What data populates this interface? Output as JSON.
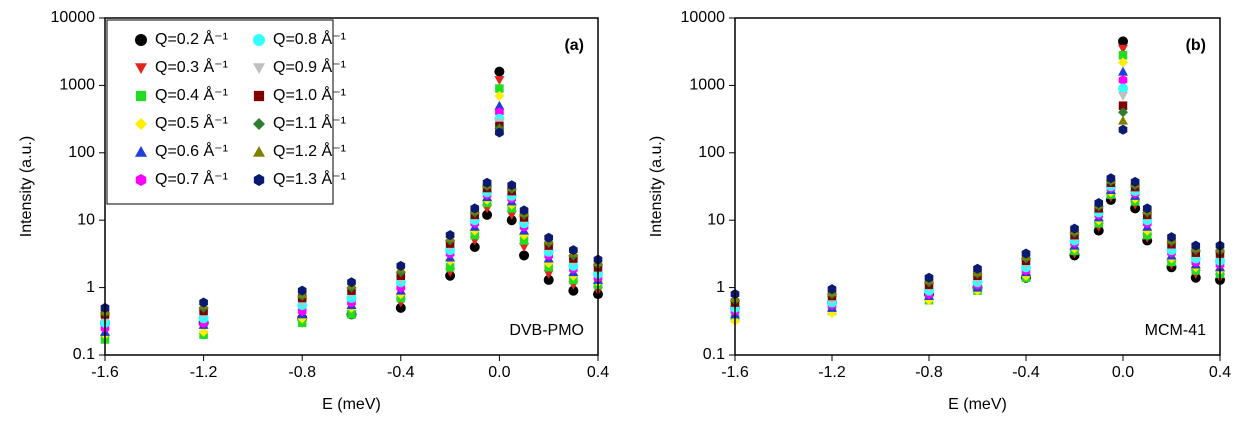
{
  "chart_data": [
    {
      "type": "scatter",
      "log_y": true,
      "ylabel": "Intensity (a.u.)",
      "xlabel": "E (meV)",
      "annotations": [
        "(a)",
        "DVB-PMO"
      ],
      "xlim": [
        -1.6,
        0.4
      ],
      "xticks": [
        -1.6,
        -1.2,
        -0.8,
        -0.4,
        {
          "value": 0,
          "label": "0.0"
        },
        0.4
      ],
      "ylim": [
        0.1,
        10000
      ],
      "yticks": [
        0.1,
        1,
        10,
        100,
        1000,
        10000
      ],
      "legend": "upper left",
      "x": [
        -1.6,
        -1.2,
        -0.8,
        -0.6,
        -0.4,
        -0.2,
        -0.1,
        -0.05,
        0,
        0.05,
        0.1,
        0.2,
        0.3,
        0.4
      ],
      "series": [
        {
          "name": "Q=0.2 Å⁻¹",
          "color": "#000000",
          "marker": "circle",
          "values": [
            0.3,
            0.3,
            0.35,
            0.4,
            0.5,
            1.5,
            4,
            12,
            1600,
            10,
            3,
            1.3,
            0.9,
            0.8
          ]
        },
        {
          "name": "Q=0.3 Å⁻¹",
          "color": "#e3261c",
          "marker": "triangle-down",
          "values": [
            0.25,
            0.25,
            0.3,
            0.4,
            0.6,
            1.7,
            5,
            15,
            1200,
            12,
            4,
            1.6,
            1.1,
            0.9
          ]
        },
        {
          "name": "Q=0.4 Å⁻¹",
          "color": "#22dd22",
          "marker": "square",
          "values": [
            0.17,
            0.2,
            0.3,
            0.4,
            0.7,
            2,
            6,
            18,
            900,
            15,
            5,
            2,
            1.3,
            1.1
          ]
        },
        {
          "name": "Q=0.5 Å⁻¹",
          "color": "#ffee00",
          "marker": "diamond",
          "values": [
            0.2,
            0.22,
            0.35,
            0.5,
            0.8,
            2.5,
            7,
            20,
            700,
            17,
            6,
            2.3,
            1.5,
            1.2
          ]
        },
        {
          "name": "Q=0.6 Å⁻¹",
          "color": "#1f3fd8",
          "marker": "triangle-up",
          "values": [
            0.22,
            0.28,
            0.4,
            0.55,
            0.9,
            2.8,
            8,
            22,
            500,
            19,
            7,
            2.7,
            1.7,
            1.3
          ]
        },
        {
          "name": "Q=0.7 Å⁻¹",
          "color": "#ff00ff",
          "marker": "hexagon",
          "values": [
            0.25,
            0.3,
            0.45,
            0.6,
            1.0,
            3.2,
            9,
            24,
            400,
            21,
            8,
            3,
            1.9,
            1.4
          ]
        },
        {
          "name": "Q=0.8 Å⁻¹",
          "color": "#33ffff",
          "marker": "circle",
          "values": [
            0.3,
            0.35,
            0.55,
            0.7,
            1.2,
            3.6,
            10,
            26,
            320,
            23,
            9,
            3.4,
            2.1,
            1.6
          ]
        },
        {
          "name": "Q=0.9 Å⁻¹",
          "color": "#bfbfbf",
          "marker": "triangle-down",
          "values": [
            0.33,
            0.4,
            0.6,
            0.8,
            1.3,
            4,
            11,
            28,
            280,
            25,
            10,
            3.8,
            2.4,
            1.8
          ]
        },
        {
          "name": "Q=1.0 Å⁻¹",
          "color": "#800000",
          "marker": "square",
          "values": [
            0.4,
            0.45,
            0.7,
            0.9,
            1.5,
            4.5,
            12,
            30,
            250,
            27,
            11,
            4.2,
            2.7,
            2
          ]
        },
        {
          "name": "Q=1.1 Å⁻¹",
          "color": "#2e7d32",
          "marker": "diamond",
          "values": [
            0.42,
            0.5,
            0.75,
            1.0,
            1.7,
            5,
            13,
            32,
            230,
            29,
            12,
            4.6,
            3,
            2.2
          ]
        },
        {
          "name": "Q=1.2 Å⁻¹",
          "color": "#808000",
          "marker": "triangle-up",
          "values": [
            0.45,
            0.55,
            0.8,
            1.1,
            1.9,
            5.5,
            14,
            34,
            220,
            31,
            13,
            5,
            3.3,
            2.4
          ]
        },
        {
          "name": "Q=1.3 Å⁻¹",
          "color": "#0a1a6e",
          "marker": "hexagon",
          "values": [
            0.5,
            0.6,
            0.9,
            1.2,
            2.1,
            6,
            15,
            36,
            200,
            33,
            14,
            5.5,
            3.6,
            2.6
          ]
        }
      ]
    },
    {
      "type": "scatter",
      "log_y": true,
      "ylabel": "Intensity (a.u.)",
      "xlabel": "E (meV)",
      "annotations": [
        "(b)",
        "MCM-41"
      ],
      "xlim": [
        -1.6,
        0.4
      ],
      "xticks": [
        -1.6,
        -1.2,
        -0.8,
        -0.4,
        {
          "value": 0,
          "label": "0.0"
        },
        0.4
      ],
      "ylim": [
        0.1,
        10000
      ],
      "yticks": [
        0.1,
        1,
        10,
        100,
        1000,
        10000
      ],
      "x": [
        -1.6,
        -1.2,
        -0.8,
        -0.6,
        -0.4,
        -0.2,
        -0.1,
        -0.05,
        0,
        0.05,
        0.1,
        0.2,
        0.3,
        0.4
      ],
      "series": [
        {
          "color": "#000000",
          "marker": "circle",
          "values": [
            0.5,
            0.6,
            0.8,
            1.0,
            1.4,
            3,
            7,
            20,
            4500,
            15,
            5,
            2,
            1.4,
            1.3
          ]
        },
        {
          "color": "#e3261c",
          "marker": "triangle-down",
          "values": [
            0.45,
            0.55,
            0.75,
            0.95,
            1.4,
            3.2,
            8,
            22,
            3500,
            17,
            5.5,
            2.2,
            1.6,
            1.4
          ]
        },
        {
          "color": "#22dd22",
          "marker": "square",
          "values": [
            0.35,
            0.45,
            0.65,
            0.9,
            1.4,
            3.5,
            9,
            24,
            2800,
            19,
            6,
            2.4,
            1.8,
            1.6
          ]
        },
        {
          "color": "#ffee00",
          "marker": "diamond",
          "values": [
            0.32,
            0.42,
            0.65,
            0.9,
            1.5,
            3.8,
            10,
            26,
            2200,
            21,
            7,
            2.7,
            2,
            1.8
          ]
        },
        {
          "color": "#1f3fd8",
          "marker": "triangle-up",
          "values": [
            0.4,
            0.5,
            0.75,
            1.0,
            1.7,
            4.2,
            11,
            28,
            1600,
            23,
            8,
            3,
            2.2,
            2
          ]
        },
        {
          "color": "#ff00ff",
          "marker": "hexagon",
          "values": [
            0.45,
            0.55,
            0.8,
            1.1,
            1.8,
            4.6,
            12,
            30,
            1200,
            25,
            9,
            3.3,
            2.4,
            2.2
          ]
        },
        {
          "color": "#33ffff",
          "marker": "circle",
          "values": [
            0.5,
            0.6,
            0.9,
            1.2,
            2.0,
            5,
            13,
            32,
            900,
            27,
            10,
            3.6,
            2.7,
            2.5
          ]
        },
        {
          "color": "#bfbfbf",
          "marker": "triangle-down",
          "values": [
            0.55,
            0.65,
            1.0,
            1.3,
            2.2,
            5.5,
            14,
            34,
            700,
            29,
            11,
            4,
            3,
            2.8
          ]
        },
        {
          "color": "#800000",
          "marker": "square",
          "values": [
            0.6,
            0.75,
            1.1,
            1.5,
            2.5,
            6,
            15,
            36,
            500,
            31,
            12,
            4.4,
            3.3,
            3.2
          ]
        },
        {
          "color": "#2e7d32",
          "marker": "diamond",
          "values": [
            0.65,
            0.8,
            1.2,
            1.6,
            2.7,
            6.5,
            16,
            38,
            400,
            33,
            13,
            4.8,
            3.6,
            3.5
          ]
        },
        {
          "color": "#808000",
          "marker": "triangle-up",
          "values": [
            0.7,
            0.85,
            1.3,
            1.7,
            2.9,
            7,
            17,
            40,
            300,
            35,
            14,
            5.2,
            3.9,
            3.8
          ]
        },
        {
          "color": "#0a1a6e",
          "marker": "hexagon",
          "values": [
            0.8,
            0.95,
            1.4,
            1.9,
            3.2,
            7.5,
            18,
            42,
            220,
            37,
            15,
            5.6,
            4.2,
            4.2
          ]
        }
      ]
    }
  ]
}
